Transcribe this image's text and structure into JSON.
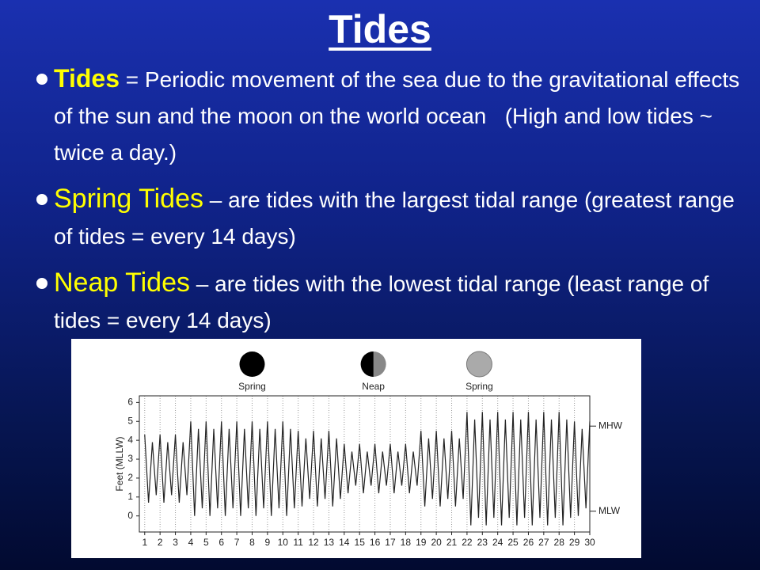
{
  "title": "Tides",
  "bullets": [
    {
      "term": "Tides",
      "text": "= Periodic movement of the sea due to the gravitational effects of the sun and the moon on the world ocean   (High and low tides ~ twice a day.)"
    },
    {
      "term": "Spring Tides",
      "text": "– are tides with the largest tidal range (greatest range of tides = every 14 days)"
    },
    {
      "term": "Neap Tides",
      "text": "– are tides with the lowest tidal range (least range of tides = every 14 days)"
    }
  ],
  "chart_data": {
    "type": "line",
    "y_label": "Feet (MLLW)",
    "color": "#222222",
    "grid": "x",
    "x": [
      1,
      1.25,
      1.5,
      1.75,
      2,
      2.25,
      2.5,
      2.75,
      3,
      3.25,
      3.5,
      3.75,
      4,
      4.25,
      4.5,
      4.75,
      5,
      5.25,
      5.5,
      5.75,
      6,
      6.25,
      6.5,
      6.75,
      7,
      7.25,
      7.5,
      7.75,
      8,
      8.25,
      8.5,
      8.75,
      9,
      9.25,
      9.5,
      9.75,
      10,
      10.25,
      10.5,
      10.75,
      11,
      11.25,
      11.5,
      11.75,
      12,
      12.25,
      12.5,
      12.75,
      13,
      13.25,
      13.5,
      13.75,
      14,
      14.25,
      14.5,
      14.75,
      15,
      15.25,
      15.5,
      15.75,
      16,
      16.25,
      16.5,
      16.75,
      17,
      17.25,
      17.5,
      17.75,
      18,
      18.25,
      18.5,
      18.75,
      19,
      19.25,
      19.5,
      19.75,
      20,
      20.25,
      20.5,
      20.75,
      21,
      21.25,
      21.5,
      21.75,
      22,
      22.25,
      22.5,
      22.75,
      23,
      23.25,
      23.5,
      23.75,
      24,
      24.25,
      24.5,
      24.75,
      25,
      25.25,
      25.5,
      25.75,
      26,
      26.25,
      26.5,
      26.75,
      27,
      27.25,
      27.5,
      27.75,
      28,
      28.25,
      28.5,
      28.75,
      29,
      29.25,
      29.5,
      29.75,
      30
    ],
    "values": [
      4.3,
      0.7,
      3.9,
      1.1,
      4.3,
      0.7,
      3.9,
      1.1,
      4.3,
      0.7,
      3.9,
      1.1,
      5,
      0,
      4.6,
      0.4,
      5,
      0,
      4.6,
      0.4,
      5,
      0,
      4.6,
      0.4,
      5,
      0,
      4.6,
      0.4,
      5,
      0,
      4.6,
      0.4,
      5,
      0,
      4.6,
      0.4,
      5,
      0,
      4.6,
      0.4,
      4.5,
      0.5,
      4.1,
      0.9,
      4.5,
      0.5,
      4.1,
      0.9,
      4.5,
      0.5,
      4.1,
      0.9,
      3.8,
      1.2,
      3.4,
      1.6,
      3.8,
      1.2,
      3.4,
      1.6,
      3.8,
      1.2,
      3.4,
      1.6,
      3.8,
      1.2,
      3.4,
      1.6,
      3.8,
      1.2,
      3.4,
      1.6,
      4.5,
      0.5,
      4.1,
      0.9,
      4.5,
      0.5,
      4.1,
      0.9,
      4.5,
      0.5,
      4.1,
      0.9,
      5.5,
      -0.5,
      5.1,
      -0.1,
      5.5,
      -0.5,
      5.1,
      -0.1,
      5.5,
      -0.5,
      5.1,
      -0.1,
      5.5,
      -0.5,
      5.1,
      -0.1,
      5.5,
      -0.5,
      5.1,
      -0.1,
      5.5,
      -0.5,
      5.1,
      -0.1,
      5.5,
      -0.5,
      5.1,
      -0.1,
      5,
      0,
      4.6,
      0.4,
      5
    ],
    "xlim": [
      0.65,
      30
    ],
    "xticks": [
      1,
      2,
      3,
      4,
      5,
      6,
      7,
      8,
      9,
      10,
      11,
      12,
      13,
      14,
      15,
      16,
      17,
      18,
      19,
      20,
      21,
      22,
      23,
      24,
      25,
      26,
      27,
      28,
      29,
      30
    ],
    "ylim": [
      -0.85,
      6.35
    ],
    "yticks": [
      0,
      1,
      2,
      3,
      4,
      5,
      6
    ],
    "reference_lines": [
      {
        "label": "MHW",
        "value": 4.75
      },
      {
        "label": "MLW",
        "value": 0.25
      }
    ],
    "phases": [
      {
        "label": "Spring",
        "day": 8
      },
      {
        "label": "Neap",
        "day": 15.9
      },
      {
        "label": "Spring",
        "day": 22.8
      }
    ]
  }
}
